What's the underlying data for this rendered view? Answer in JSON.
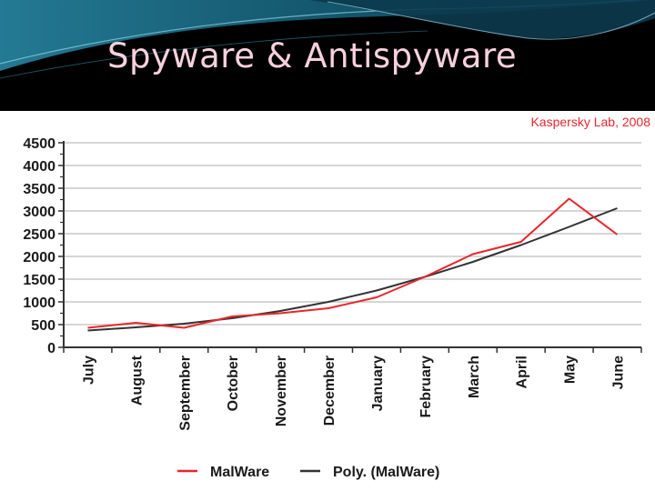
{
  "slide": {
    "title": "Spyware & Antispyware"
  },
  "colors": {
    "banner": "#000000",
    "swoosh_teal": "#1f7f9a",
    "title": "#f7d1dd",
    "malware_line": "#e8262c",
    "poly_line": "#333333",
    "watermark": "#e8262c"
  },
  "chart_data": {
    "type": "line",
    "watermark": "Kaspersky Lab, 2008",
    "categories": [
      "July",
      "August",
      "September",
      "October",
      "November",
      "December",
      "January",
      "February",
      "March",
      "April",
      "May",
      "June"
    ],
    "series": [
      {
        "name": "MalWare",
        "color": "#e8262c",
        "values": [
          430,
          540,
          430,
          680,
          750,
          860,
          1100,
          1550,
          2050,
          2320,
          3270,
          2480
        ]
      },
      {
        "name": "Poly. (MalWare)",
        "color": "#333333",
        "values": [
          370,
          440,
          520,
          640,
          800,
          1000,
          1250,
          1550,
          1880,
          2250,
          2650,
          3060
        ]
      }
    ],
    "y_ticks": [
      "0",
      "500",
      "1000",
      "1500",
      "2000",
      "2500",
      "3000",
      "3500",
      "4000",
      "4500"
    ],
    "ylim": [
      0,
      4500
    ],
    "grid": true,
    "legend": "bottom"
  }
}
